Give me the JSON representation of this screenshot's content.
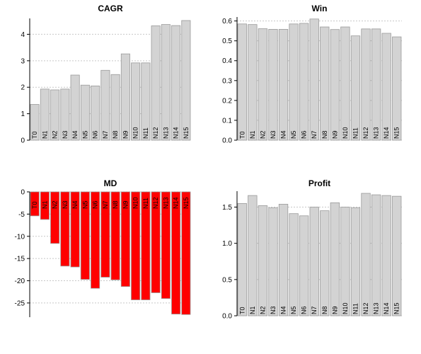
{
  "chart_data": [
    {
      "type": "bar",
      "title": "CAGR",
      "xlabel": "",
      "ylabel": "",
      "categories": [
        "T0",
        "N1",
        "N2",
        "N3",
        "N4",
        "N5",
        "N6",
        "N7",
        "N8",
        "N9",
        "N10",
        "N11",
        "N12",
        "N13",
        "N14",
        "N15"
      ],
      "values": [
        1.35,
        1.93,
        1.9,
        1.93,
        2.46,
        2.08,
        2.05,
        2.64,
        2.48,
        3.26,
        2.92,
        2.92,
        4.32,
        4.37,
        4.33,
        4.52
      ],
      "ylim": [
        0,
        4.6
      ],
      "yticks": [
        0,
        1,
        2,
        3,
        4
      ],
      "grid": true,
      "bar_color": "#d3d3d3"
    },
    {
      "type": "bar",
      "title": "Win",
      "xlabel": "",
      "ylabel": "",
      "categories": [
        "T0",
        "N1",
        "N2",
        "N3",
        "N4",
        "N5",
        "N6",
        "N7",
        "N8",
        "N9",
        "N10",
        "N11",
        "N12",
        "N13",
        "N14",
        "N15"
      ],
      "values": [
        0.585,
        0.582,
        0.561,
        0.558,
        0.558,
        0.585,
        0.588,
        0.61,
        0.57,
        0.557,
        0.57,
        0.525,
        0.56,
        0.56,
        0.538,
        0.52
      ],
      "ylim": [
        0,
        0.62
      ],
      "yticks": [
        "0.0",
        "0.1",
        "0.2",
        "0.3",
        "0.4",
        "0.5",
        "0.6"
      ],
      "grid": true,
      "bar_color": "#d3d3d3"
    },
    {
      "type": "bar",
      "title": "MD",
      "xlabel": "",
      "ylabel": "",
      "categories": [
        "T0",
        "N1",
        "N2",
        "N3",
        "N4",
        "N5",
        "N6",
        "N7",
        "N8",
        "N9",
        "N10",
        "N11",
        "N12",
        "N13",
        "N14",
        "N15"
      ],
      "values": [
        -5.4,
        -6.2,
        -11.6,
        -16.7,
        -16.9,
        -19.7,
        -21.7,
        -19.2,
        -19.8,
        -21.3,
        -24.3,
        -24.3,
        -22.7,
        -24.0,
        -27.5,
        -27.6
      ],
      "ylim": [
        -28.2,
        0
      ],
      "yticks": [
        0,
        -5,
        -10,
        -15,
        -20,
        -25
      ],
      "grid": true,
      "bar_color": "#ff0000"
    },
    {
      "type": "bar",
      "title": "Profit",
      "xlabel": "",
      "ylabel": "",
      "categories": [
        "T0",
        "N1",
        "N2",
        "N3",
        "N4",
        "N5",
        "N6",
        "N7",
        "N8",
        "N9",
        "N10",
        "N11",
        "N12",
        "N13",
        "N14",
        "N15"
      ],
      "values": [
        1.55,
        1.66,
        1.52,
        1.49,
        1.54,
        1.41,
        1.38,
        1.5,
        1.45,
        1.56,
        1.5,
        1.49,
        1.69,
        1.67,
        1.66,
        1.65
      ],
      "ylim": [
        0,
        1.72
      ],
      "yticks": [
        "0.0",
        "0.5",
        "1.0",
        "1.5"
      ],
      "grid": true,
      "bar_color": "#d3d3d3"
    }
  ]
}
